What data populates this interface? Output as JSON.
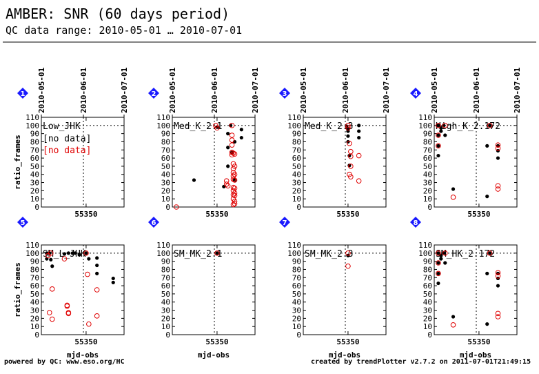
{
  "header": {
    "title": "AMBER: SNR (60 days period)",
    "subtitle": "QC data range: 2010-05-01 … 2010-07-01"
  },
  "top_dates": [
    "2010-05-01",
    "2010-06-01",
    "2010-07-01"
  ],
  "footer": {
    "left": "powered by QC: www.eso.org/HC",
    "right": "created by trendPlotter v2.7.2 on  2011-07-01T21:49:15"
  },
  "colors": {
    "series_black": "#000000",
    "series_red": "#e00000",
    "badge": "#1a1aff"
  },
  "chart_data": [
    {
      "type": "scatter",
      "panel": "1",
      "label": "Low_JHK",
      "notes": [
        "[no data]",
        "[no data]"
      ],
      "xlabel": "",
      "ylabel": "ratio_frames",
      "xlim": [
        55317,
        55378
      ],
      "ylim": [
        0,
        110
      ],
      "yticks": [
        0,
        10,
        20,
        30,
        40,
        50,
        60,
        70,
        80,
        90,
        100,
        110
      ],
      "xtick_label": "55350",
      "ref_x": 55348,
      "ref_y": 100,
      "series": [
        {
          "color": "black",
          "marker": "filled",
          "points": []
        },
        {
          "color": "red",
          "marker": "open",
          "points": []
        }
      ]
    },
    {
      "type": "scatter",
      "panel": "2",
      "label": "Med_K_2.1",
      "xlabel": "",
      "ylabel": "",
      "xlim": [
        55317,
        55378
      ],
      "ylim": [
        0,
        110
      ],
      "yticks": [
        0,
        10,
        20,
        30,
        40,
        50,
        60,
        70,
        80,
        90,
        100,
        110
      ],
      "xtick_label": "55350",
      "ref_x": 55348,
      "ref_y": 100,
      "series": [
        {
          "color": "black",
          "marker": "filled",
          "points": [
            [
              55333,
              33
            ],
            [
              55350,
              98
            ],
            [
              55355,
              25
            ],
            [
              55358,
              90
            ],
            [
              55358,
              73
            ],
            [
              55358,
              50
            ],
            [
              55360,
              100
            ],
            [
              55361,
              67
            ],
            [
              55363,
              80
            ],
            [
              55363,
              33
            ],
            [
              55368,
              95
            ],
            [
              55368,
              85
            ]
          ]
        },
        {
          "color": "red",
          "marker": "open",
          "points": [
            [
              55320,
              0
            ],
            [
              55349,
              100
            ],
            [
              55350,
              97
            ],
            [
              55357,
              32
            ],
            [
              55357,
              28
            ],
            [
              55358,
              26
            ],
            [
              55361,
              100
            ],
            [
              55361,
              88
            ],
            [
              55361,
              82
            ],
            [
              55361,
              76
            ],
            [
              55361,
              67
            ],
            [
              55361,
              64
            ],
            [
              55362,
              66
            ],
            [
              55362,
              53
            ],
            [
              55362,
              47
            ],
            [
              55362,
              42
            ],
            [
              55362,
              38
            ],
            [
              55362,
              34
            ],
            [
              55362,
              24
            ],
            [
              55362,
              20
            ],
            [
              55362,
              15
            ],
            [
              55362,
              10
            ],
            [
              55362,
              3
            ],
            [
              55363,
              65
            ],
            [
              55363,
              50
            ],
            [
              55363,
              40
            ],
            [
              55363,
              33
            ],
            [
              55363,
              23
            ],
            [
              55363,
              17
            ],
            [
              55363,
              14
            ],
            [
              55363,
              7
            ],
            [
              55363,
              4
            ]
          ]
        }
      ]
    },
    {
      "type": "scatter",
      "panel": "3",
      "label": "Med_K_2.3",
      "xlabel": "",
      "ylabel": "",
      "xlim": [
        55317,
        55378
      ],
      "ylim": [
        0,
        110
      ],
      "yticks": [
        0,
        10,
        20,
        30,
        40,
        50,
        60,
        70,
        80,
        90,
        100,
        110
      ],
      "xtick_label": "55350",
      "ref_x": 55348,
      "ref_y": 100,
      "series": [
        {
          "color": "black",
          "marker": "filled",
          "points": [
            [
              55349,
              99
            ],
            [
              55350,
              96
            ],
            [
              55350,
              93
            ],
            [
              55350,
              87
            ],
            [
              55350,
              80
            ],
            [
              55351,
              63
            ],
            [
              55351,
              51
            ],
            [
              55358,
              100
            ],
            [
              55358,
              93
            ],
            [
              55358,
              85
            ]
          ]
        },
        {
          "color": "red",
          "marker": "open",
          "points": [
            [
              55350,
              100
            ],
            [
              55350,
              97
            ],
            [
              55351,
              78
            ],
            [
              55352,
              68
            ],
            [
              55352,
              62
            ],
            [
              55352,
              50
            ],
            [
              55351,
              40
            ],
            [
              55352,
              37
            ],
            [
              55358,
              63
            ],
            [
              55358,
              32
            ]
          ]
        }
      ]
    },
    {
      "type": "scatter",
      "panel": "4",
      "label": "High_K_2.172",
      "xlabel": "",
      "ylabel": "",
      "xlim": [
        55317,
        55378
      ],
      "ylim": [
        0,
        110
      ],
      "yticks": [
        0,
        10,
        20,
        30,
        40,
        50,
        60,
        70,
        80,
        90,
        100,
        110
      ],
      "xtick_label": "55350",
      "ref_x": 55348,
      "ref_y": 100,
      "series": [
        {
          "color": "black",
          "marker": "filled",
          "points": [
            [
              55320,
              100
            ],
            [
              55320,
              88
            ],
            [
              55320,
              75
            ],
            [
              55320,
              63
            ],
            [
              55322,
              97
            ],
            [
              55322,
              93
            ],
            [
              55324,
              100
            ],
            [
              55325,
              88
            ],
            [
              55331,
              22
            ],
            [
              55356,
              13
            ],
            [
              55356,
              75
            ],
            [
              55358,
              100
            ],
            [
              55364,
              75
            ],
            [
              55364,
              69
            ],
            [
              55364,
              60
            ]
          ]
        },
        {
          "color": "red",
          "marker": "open",
          "points": [
            [
              55320,
              100
            ],
            [
              55320,
              88
            ],
            [
              55320,
              75
            ],
            [
              55325,
              100
            ],
            [
              55331,
              12
            ],
            [
              55358,
              100
            ],
            [
              55364,
              76
            ],
            [
              55364,
              72
            ],
            [
              55364,
              26
            ],
            [
              55364,
              22
            ]
          ]
        }
      ]
    },
    {
      "type": "scatter",
      "panel": "5",
      "label": "SM_L_JHK",
      "xlabel": "mjd-obs",
      "ylabel": "ratio_frames",
      "xlim": [
        55317,
        55378
      ],
      "ylim": [
        0,
        110
      ],
      "yticks": [
        0,
        10,
        20,
        30,
        40,
        50,
        60,
        70,
        80,
        90,
        100,
        110
      ],
      "xtick_label": "55350",
      "ref_x": 55348,
      "ref_y": 100,
      "series": [
        {
          "color": "black",
          "marker": "filled",
          "points": [
            [
              55321,
              100
            ],
            [
              55321,
              93
            ],
            [
              55323,
              100
            ],
            [
              55324,
              92
            ],
            [
              55325,
              84
            ],
            [
              55334,
              99
            ],
            [
              55337,
              100
            ],
            [
              55340,
              100
            ],
            [
              55342,
              100
            ],
            [
              55345,
              98
            ],
            [
              55350,
              100
            ],
            [
              55352,
              93
            ],
            [
              55358,
              94
            ],
            [
              55358,
              85
            ],
            [
              55358,
              75
            ],
            [
              55370,
              69
            ],
            [
              55370,
              64
            ]
          ]
        },
        {
          "color": "red",
          "marker": "open",
          "points": [
            [
              55322,
              97
            ],
            [
              55323,
              27
            ],
            [
              55324,
              100
            ],
            [
              55325,
              19
            ],
            [
              55325,
              56
            ],
            [
              55334,
              93
            ],
            [
              55336,
              36
            ],
            [
              55336,
              35
            ],
            [
              55337,
              27
            ],
            [
              55337,
              26
            ],
            [
              55350,
              100
            ],
            [
              55351,
              74
            ],
            [
              55352,
              13
            ],
            [
              55358,
              55
            ],
            [
              55358,
              23
            ]
          ]
        }
      ]
    },
    {
      "type": "scatter",
      "panel": "6",
      "label": "SM_MK_2.1",
      "xlabel": "mjd-obs",
      "ylabel": "",
      "xlim": [
        55317,
        55378
      ],
      "ylim": [
        0,
        110
      ],
      "yticks": [
        0,
        10,
        20,
        30,
        40,
        50,
        60,
        70,
        80,
        90,
        100,
        110
      ],
      "xtick_label": "55350",
      "ref_x": 55348,
      "ref_y": 100,
      "series": [
        {
          "color": "black",
          "marker": "filled",
          "points": [
            [
              55350,
              100
            ]
          ]
        },
        {
          "color": "red",
          "marker": "open",
          "points": [
            [
              55350,
              100
            ]
          ]
        }
      ]
    },
    {
      "type": "scatter",
      "panel": "7",
      "label": "SM_MK_2.3",
      "xlabel": "mjd-obs",
      "ylabel": "",
      "xlim": [
        55317,
        55378
      ],
      "ylim": [
        0,
        110
      ],
      "yticks": [
        0,
        10,
        20,
        30,
        40,
        50,
        60,
        70,
        80,
        90,
        100,
        110
      ],
      "xtick_label": "55350",
      "ref_x": 55348,
      "ref_y": 100,
      "series": [
        {
          "color": "black",
          "marker": "filled",
          "points": [
            [
              55350,
              97
            ]
          ]
        },
        {
          "color": "red",
          "marker": "open",
          "points": [
            [
              55350,
              100
            ],
            [
              55350,
              84
            ]
          ]
        }
      ]
    },
    {
      "type": "scatter",
      "panel": "8",
      "label": "SM_HK_2.172",
      "xlabel": "mjd-obs",
      "ylabel": "",
      "xlim": [
        55317,
        55378
      ],
      "ylim": [
        0,
        110
      ],
      "yticks": [
        0,
        10,
        20,
        30,
        40,
        50,
        60,
        70,
        80,
        90,
        100,
        110
      ],
      "xtick_label": "55350",
      "ref_x": 55348,
      "ref_y": 100,
      "series": [
        {
          "color": "black",
          "marker": "filled",
          "points": [
            [
              55320,
              100
            ],
            [
              55320,
              88
            ],
            [
              55320,
              75
            ],
            [
              55320,
              63
            ],
            [
              55322,
              97
            ],
            [
              55322,
              93
            ],
            [
              55324,
              100
            ],
            [
              55325,
              88
            ],
            [
              55331,
              22
            ],
            [
              55356,
              13
            ],
            [
              55356,
              75
            ],
            [
              55358,
              100
            ],
            [
              55364,
              75
            ],
            [
              55364,
              69
            ],
            [
              55364,
              60
            ]
          ]
        },
        {
          "color": "red",
          "marker": "open",
          "points": [
            [
              55320,
              100
            ],
            [
              55320,
              88
            ],
            [
              55320,
              75
            ],
            [
              55325,
              100
            ],
            [
              55331,
              12
            ],
            [
              55358,
              100
            ],
            [
              55364,
              76
            ],
            [
              55364,
              72
            ],
            [
              55364,
              26
            ],
            [
              55364,
              22
            ]
          ]
        }
      ]
    }
  ]
}
